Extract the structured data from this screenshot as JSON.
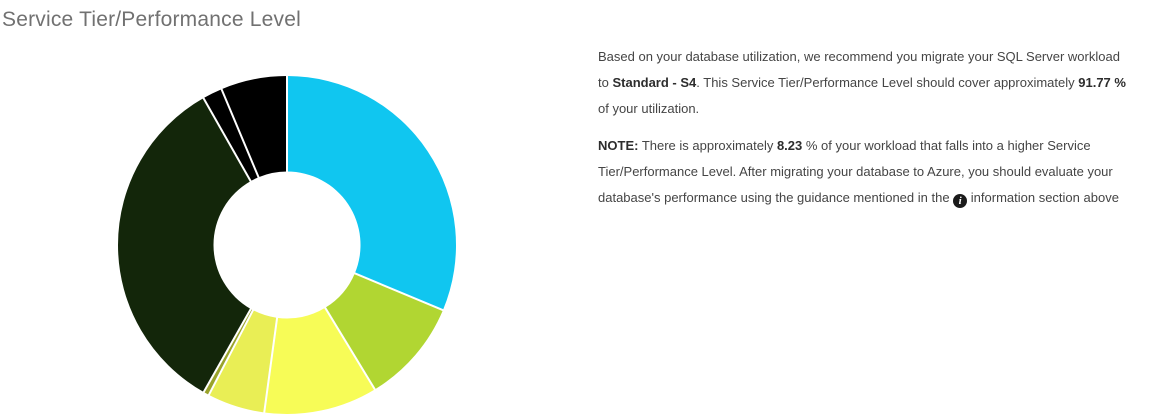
{
  "title": "Service Tier/Performance Level",
  "recommendation": {
    "paragraph1": [
      {
        "t": "Based on your database utilization, we recommend you migrate your SQL Server workload"
      },
      {
        "br": true
      },
      {
        "t": "to "
      },
      {
        "t": "Standard - S4",
        "b": true
      },
      {
        "t": ". This Service Tier/Performance Level should cover approximately "
      },
      {
        "t": "91.77 %",
        "b": true
      },
      {
        "br": true
      },
      {
        "t": "of your utilization."
      }
    ],
    "paragraph2": [
      {
        "t": "NOTE:",
        "b": true
      },
      {
        "t": " There is approximately "
      },
      {
        "t": "8.23",
        "b": true
      },
      {
        "t": " % of your workload that falls into a higher Service"
      },
      {
        "br": true
      },
      {
        "t": "Tier/Performance Level. After migrating your database to Azure, you should evaluate your"
      },
      {
        "br": true
      },
      {
        "t": "database's performance using the guidance mentioned in the "
      },
      {
        "icon": "info-icon"
      },
      {
        "t": " information section above"
      }
    ]
  },
  "chart_data": {
    "type": "pie",
    "variant": "donut",
    "title": "Service Tier/Performance Level utilization distribution",
    "legend": "none",
    "start_angle_deg": 0,
    "direction": "clockwise",
    "inner_radius_ratio": 0.435,
    "separator_color": "#ffffff",
    "covered_pct": 91.77,
    "higher_tier_pct": 8.23,
    "slices": [
      {
        "name": "cyan",
        "value": 31.3,
        "color": "#10c6f0"
      },
      {
        "name": "yellow-green",
        "value": 10.0,
        "color": "#b1d632"
      },
      {
        "name": "yellow-bright",
        "value": 10.85,
        "color": "#f7fc57"
      },
      {
        "name": "yellow-dull",
        "value": 5.5,
        "color": "#e9ee55"
      },
      {
        "name": "olive-sliver",
        "value": 0.55,
        "color": "#99a32b"
      },
      {
        "name": "dark-green",
        "value": 33.57,
        "color": "#13260a"
      },
      {
        "name": "black-sliver",
        "value": 1.9,
        "color": "#000000"
      },
      {
        "name": "black",
        "value": 6.33,
        "color": "#000000"
      }
    ]
  }
}
